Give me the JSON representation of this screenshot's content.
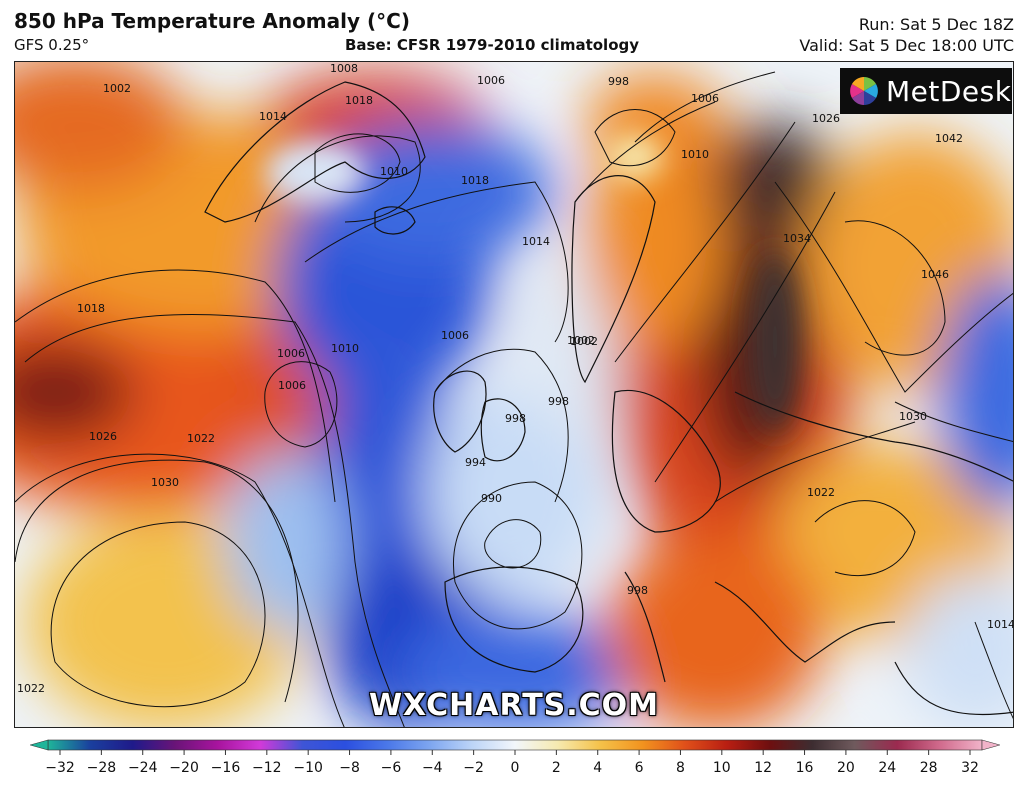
{
  "header": {
    "title": "850 hPa Temperature Anomaly (°C)",
    "model": "GFS 0.25°",
    "base": "Base: CFSR 1979-2010 climatology",
    "run": "Run: Sat 5 Dec 18Z",
    "valid": "Valid: Sat 5 Dec 18:00 UTC"
  },
  "branding": {
    "logo_text": "MetDesk",
    "watermark": "WXCHARTS.COM"
  },
  "isobars": {
    "labels": [
      "1002",
      "1008",
      "1018",
      "1006",
      "1014",
      "1010",
      "1018",
      "1014",
      "1006",
      "1002",
      "998",
      "1006",
      "1010",
      "1026",
      "1042",
      "1018",
      "1006",
      "1010",
      "1022",
      "1026",
      "1030",
      "1006",
      "1002",
      "998",
      "990",
      "998",
      "998",
      "1034",
      "1046",
      "1030",
      "1022",
      "1022",
      "1014",
      "994"
    ]
  },
  "colorbar": {
    "ticks": [
      "−32",
      "−28",
      "−24",
      "−20",
      "−16",
      "−12",
      "−10",
      "−8",
      "−6",
      "−4",
      "−2",
      "0",
      "2",
      "4",
      "6",
      "8",
      "10",
      "12",
      "16",
      "20",
      "24",
      "28",
      "32"
    ],
    "colors": [
      "#1fb59a",
      "#1a3f9e",
      "#1f1a8a",
      "#6a1478",
      "#a8149e",
      "#d13ad8",
      "#3e55d6",
      "#2b4fe0",
      "#4b78e8",
      "#7ea6f0",
      "#bdd5f7",
      "#f2f6fb",
      "#f6eab0",
      "#f5c24a",
      "#f2931f",
      "#e0501a",
      "#b81e12",
      "#6e0f10",
      "#3d2d31",
      "#6f5a5d",
      "#9b2a4f",
      "#d06a8c",
      "#f1b3c9"
    ]
  }
}
